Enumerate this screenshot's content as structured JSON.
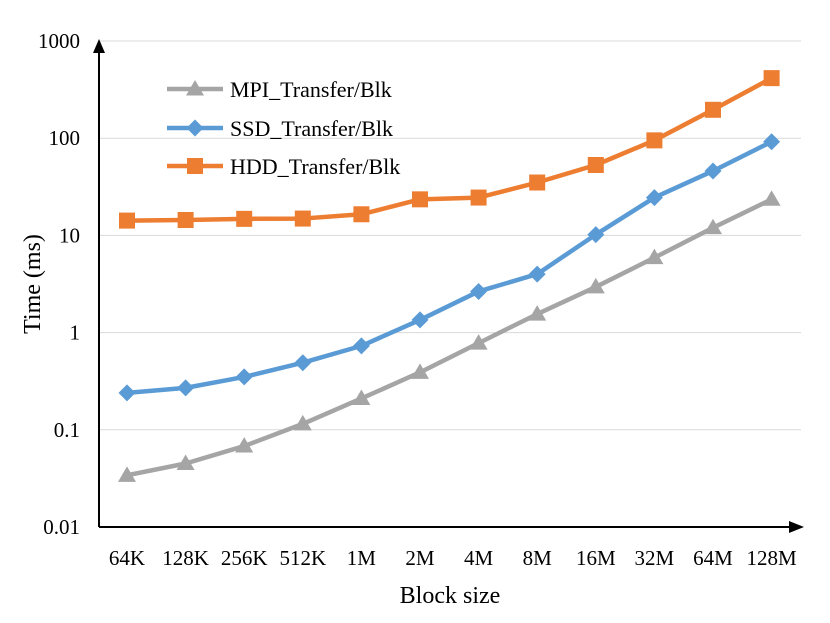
{
  "chart_data": {
    "type": "line",
    "yscale": "log",
    "title": "",
    "xlabel": "Block size",
    "ylabel": "Time (ms)",
    "ylim": [
      0.01,
      1000
    ],
    "y_ticks": [
      "0.01",
      "0.1",
      "1",
      "10",
      "100",
      "1000"
    ],
    "y_tick_values": [
      0.01,
      0.1,
      1,
      10,
      100,
      1000
    ],
    "categories": [
      "64K",
      "128K",
      "256K",
      "512K",
      "1M",
      "2M",
      "4M",
      "8M",
      "16M",
      "32M",
      "64M",
      "128M"
    ],
    "grid": true,
    "legend_position": "top-left",
    "series": [
      {
        "name": "MPI_Transfer/Blk",
        "color": "#a5a5a5",
        "marker": "triangle",
        "values": [
          0.034,
          0.045,
          0.068,
          0.115,
          0.21,
          0.39,
          0.78,
          1.55,
          2.95,
          5.9,
          12,
          23.5
        ]
      },
      {
        "name": "SSD_Transfer/Blk",
        "color": "#5b9bd5",
        "marker": "diamond",
        "values": [
          0.24,
          0.27,
          0.35,
          0.49,
          0.73,
          1.35,
          2.65,
          4.0,
          10.2,
          24.5,
          46,
          92
        ]
      },
      {
        "name": "HDD_Transfer/Blk",
        "color": "#ed7d31",
        "marker": "square",
        "values": [
          14.2,
          14.4,
          14.8,
          14.9,
          16.5,
          23.5,
          24.5,
          35,
          53,
          95,
          196,
          415
        ]
      }
    ]
  }
}
